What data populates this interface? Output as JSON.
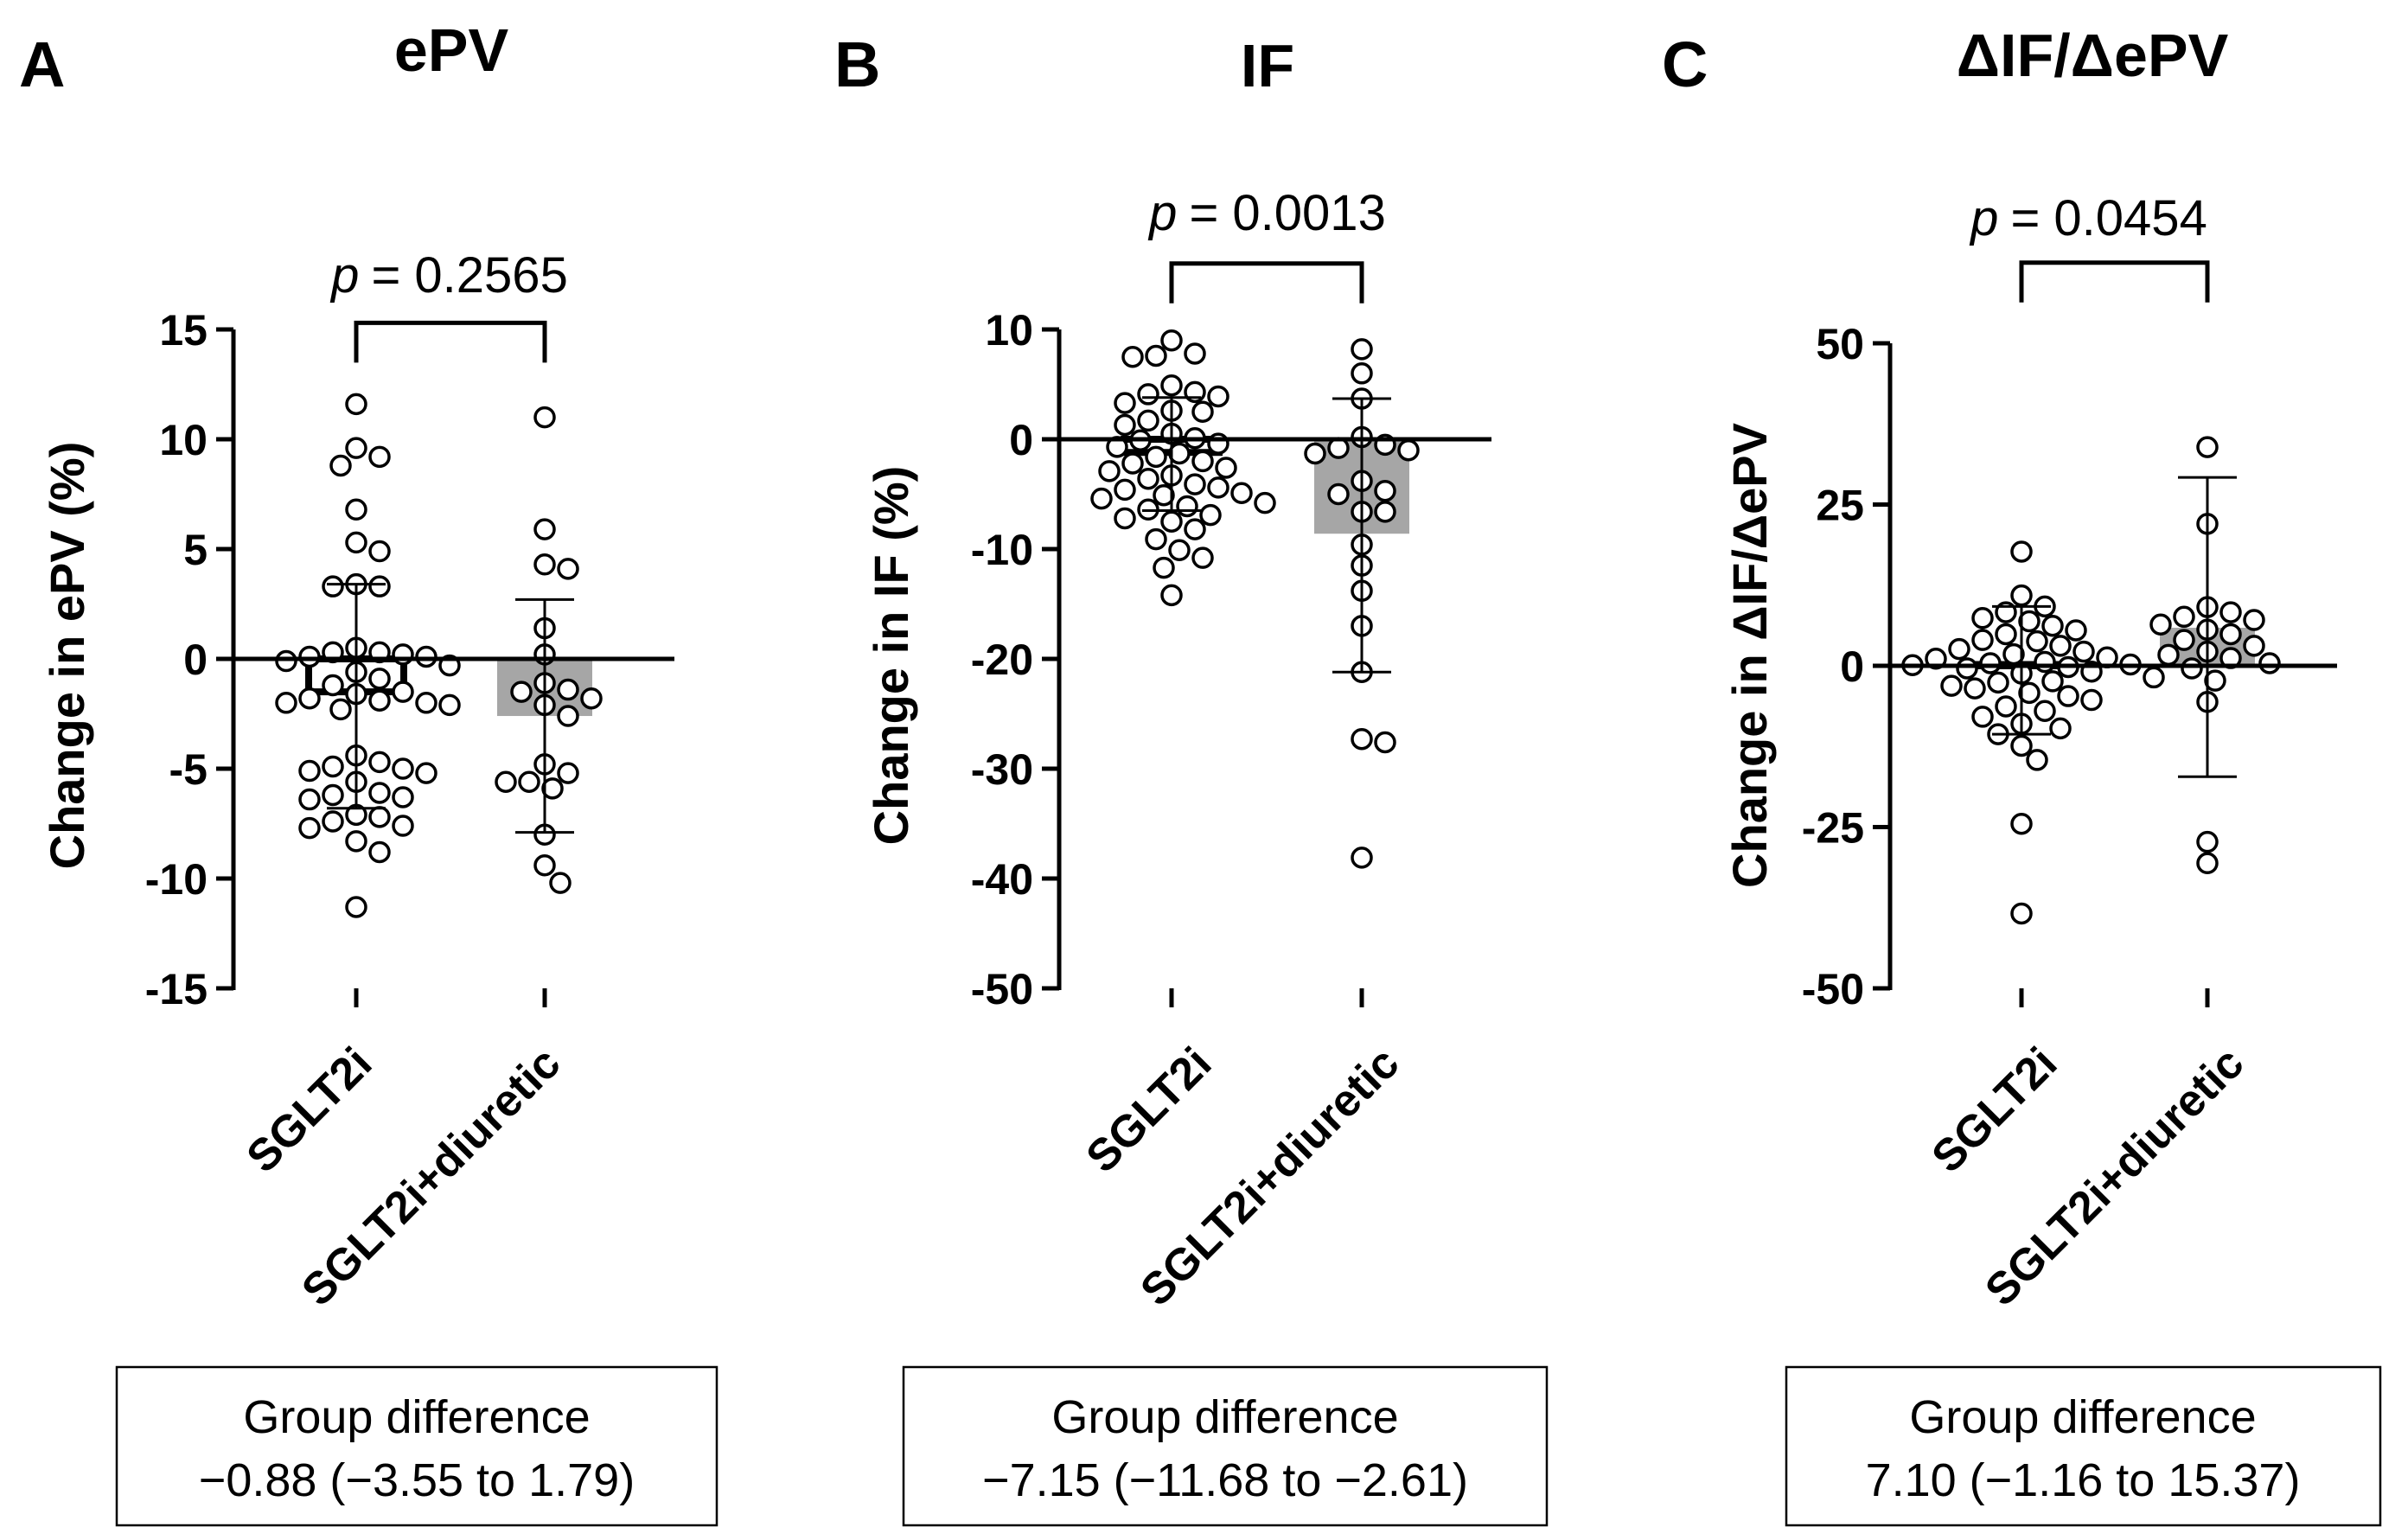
{
  "chart_data": [
    {
      "type": "bar",
      "panel_letter": "A",
      "title": "ePV",
      "ylabel": "Change in ePV (%)",
      "xlabel": "",
      "categories": [
        "SGLT2i",
        "SGLT2i+diuretic"
      ],
      "ylim": [
        -15,
        15
      ],
      "yticks": [
        15,
        10,
        5,
        0,
        -5,
        -10,
        -15
      ],
      "ytick_labels": [
        "15",
        "10",
        "5",
        "0",
        "-5",
        "-10",
        "-15"
      ],
      "bar_means": [
        -1.5,
        -2.6
      ],
      "bar_colors": [
        "#ffffff",
        "#a6a6a6"
      ],
      "error_bars": [
        {
          "low": -6.8,
          "high": 3.4
        },
        {
          "low": -7.9,
          "high": 2.7
        }
      ],
      "points": [
        [
          11.6,
          9.6,
          9.2,
          8.8,
          6.8,
          5.3,
          4.9,
          3.4,
          3.3,
          3.3,
          0.5,
          0.3,
          0.3,
          0.2,
          0.1,
          0.1,
          -0.1,
          -0.3,
          -0.6,
          -0.9,
          -1.2,
          -1.5,
          -1.6,
          -1.8,
          -1.9,
          -2.0,
          -2.0,
          -2.1,
          -2.3,
          -4.4,
          -4.7,
          -4.9,
          -5.0,
          -5.1,
          -5.2,
          -5.6,
          -6.1,
          -6.2,
          -6.3,
          -6.4,
          -7.1,
          -7.2,
          -7.4,
          -7.6,
          -7.7,
          -8.3,
          -8.8,
          -11.3
        ],
        [
          11.0,
          5.9,
          4.3,
          4.1,
          1.4,
          0.2,
          -1.1,
          -1.4,
          -1.5,
          -1.8,
          -2.1,
          -2.6,
          -4.8,
          -5.2,
          -5.6,
          -5.6,
          -5.9,
          -8.0,
          -9.4,
          -10.2
        ]
      ],
      "significance": {
        "p_symbol": "p",
        "p_text": "= 0.2565",
        "y": 15.3
      },
      "group_difference": {
        "heading": "Group difference",
        "value": "−0.88 (−3.55 to 1.79)"
      }
    },
    {
      "type": "bar",
      "panel_letter": "B",
      "title": "IF",
      "ylabel": "Change in IF (%)",
      "xlabel": "",
      "categories": [
        "SGLT2i",
        "SGLT2i+diuretic"
      ],
      "ylim": [
        -50,
        10
      ],
      "yticks": [
        10,
        0,
        -10,
        -20,
        -30,
        -40,
        -50
      ],
      "ytick_labels": [
        "10",
        "0",
        "-10",
        "-20",
        "-30",
        "-40",
        "-50"
      ],
      "bar_means": [
        -1.2,
        -8.6
      ],
      "bar_colors": [
        "#ffffff",
        "#a6a6a6"
      ],
      "error_bars": [
        {
          "low": -6.5,
          "high": 3.8
        },
        {
          "low": -21.2,
          "high": 3.7
        }
      ],
      "points": [
        [
          9.0,
          7.8,
          7.6,
          7.5,
          4.9,
          4.3,
          4.1,
          3.9,
          3.3,
          2.6,
          2.5,
          1.7,
          1.3,
          0.5,
          0.1,
          -0.1,
          -0.4,
          -0.7,
          -1.3,
          -1.6,
          -2.0,
          -2.2,
          -2.6,
          -2.9,
          -3.3,
          -3.6,
          -4.1,
          -4.4,
          -4.6,
          -4.9,
          -5.1,
          -5.4,
          -5.8,
          -6.1,
          -6.4,
          -6.9,
          -7.2,
          -7.5,
          -8.2,
          -9.1,
          -10.1,
          -10.8,
          -11.7,
          -14.2
        ],
        [
          8.2,
          6.0,
          3.7,
          0.2,
          -0.5,
          -0.8,
          -1.0,
          -1.3,
          -3.8,
          -4.7,
          -5.0,
          -6.6,
          -6.6,
          -9.6,
          -11.5,
          -13.8,
          -17.0,
          -21.2,
          -27.3,
          -27.6,
          -38.1
        ]
      ],
      "significance": {
        "p_symbol": "p",
        "p_text": "= 0.0013",
        "y": 16.0
      },
      "group_difference": {
        "heading": "Group difference",
        "value": "−7.15 (−11.68 to −2.61)"
      }
    },
    {
      "type": "bar",
      "panel_letter": "C",
      "title": "ΔIF/ΔePV",
      "ylabel": "Change in ΔIF/ΔePV",
      "xlabel": "",
      "categories": [
        "SGLT2i",
        "SGLT2i+diuretic"
      ],
      "ylim": [
        -50,
        50
      ],
      "yticks": [
        50,
        25,
        0,
        -25,
        -50
      ],
      "ytick_labels": [
        "50",
        "25",
        "0",
        "-25",
        "-50"
      ],
      "bar_means": [
        0.2,
        5.9
      ],
      "bar_colors": [
        "#ffffff",
        "#a6a6a6"
      ],
      "error_bars": [
        {
          "low": -10.6,
          "high": 9.2
        },
        {
          "low": -17.2,
          "high": 29.2
        }
      ],
      "points": [
        [
          17.7,
          10.9,
          9.2,
          8.3,
          7.4,
          6.9,
          6.2,
          5.5,
          4.9,
          4.0,
          3.8,
          3.1,
          2.6,
          2.2,
          1.8,
          1.3,
          1.1,
          0.6,
          0.4,
          0.2,
          0.1,
          -0.2,
          -0.4,
          -0.9,
          -1.2,
          -1.8,
          -2.4,
          -2.6,
          -3.1,
          -3.5,
          -4.2,
          -4.7,
          -5.3,
          -6.3,
          -7.0,
          -7.9,
          -9.0,
          -9.7,
          -10.6,
          -12.4,
          -14.6,
          -24.5,
          -38.4
        ],
        [
          33.9,
          22.0,
          9.1,
          8.3,
          7.6,
          7.1,
          6.4,
          5.6,
          4.9,
          4.0,
          3.1,
          2.2,
          1.7,
          1.2,
          0.4,
          -0.4,
          -2.3,
          -5.6,
          -27.3,
          -30.6
        ]
      ],
      "significance": {
        "p_symbol": "p",
        "p_text": "= 0.0454",
        "y": 62.5
      },
      "group_difference": {
        "heading": "Group difference",
        "value": "7.10 (−1.16 to 15.37)"
      }
    }
  ]
}
